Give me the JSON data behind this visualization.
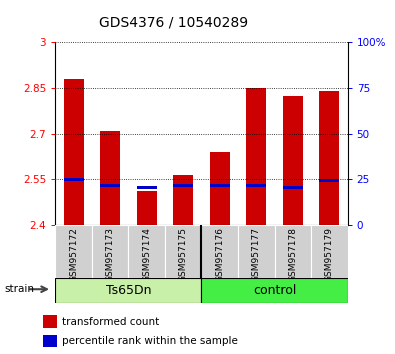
{
  "title": "GDS4376 / 10540289",
  "samples": [
    "GSM957172",
    "GSM957173",
    "GSM957174",
    "GSM957175",
    "GSM957176",
    "GSM957177",
    "GSM957178",
    "GSM957179"
  ],
  "red_values": [
    2.88,
    2.71,
    2.51,
    2.565,
    2.638,
    2.851,
    2.825,
    2.84
  ],
  "blue_values": [
    2.548,
    2.528,
    2.522,
    2.528,
    2.528,
    2.528,
    2.524,
    2.545
  ],
  "ylim_left": [
    2.4,
    3.0
  ],
  "ylim_right": [
    0,
    100
  ],
  "yticks_left": [
    2.4,
    2.55,
    2.7,
    2.85,
    3.0
  ],
  "yticks_right": [
    0,
    25,
    50,
    75,
    100
  ],
  "ytick_labels_left": [
    "2.4",
    "2.55",
    "2.7",
    "2.85",
    "3"
  ],
  "ytick_labels_right": [
    "0",
    "25",
    "50",
    "75",
    "100%"
  ],
  "bar_color": "#CC0000",
  "marker_color": "#0000CC",
  "bar_bottom": 2.4,
  "bar_width": 0.55,
  "ts65dn_color": "#c8f0a8",
  "control_color": "#44ee44",
  "sample_box_color": "#d0d0d0",
  "strain_label": "strain",
  "legend_red": "transformed count",
  "legend_blue": "percentile rank within the sample",
  "title_fontsize": 10,
  "tick_fontsize": 7.5,
  "sample_fontsize": 6.5,
  "group_fontsize": 9,
  "legend_fontsize": 7.5
}
